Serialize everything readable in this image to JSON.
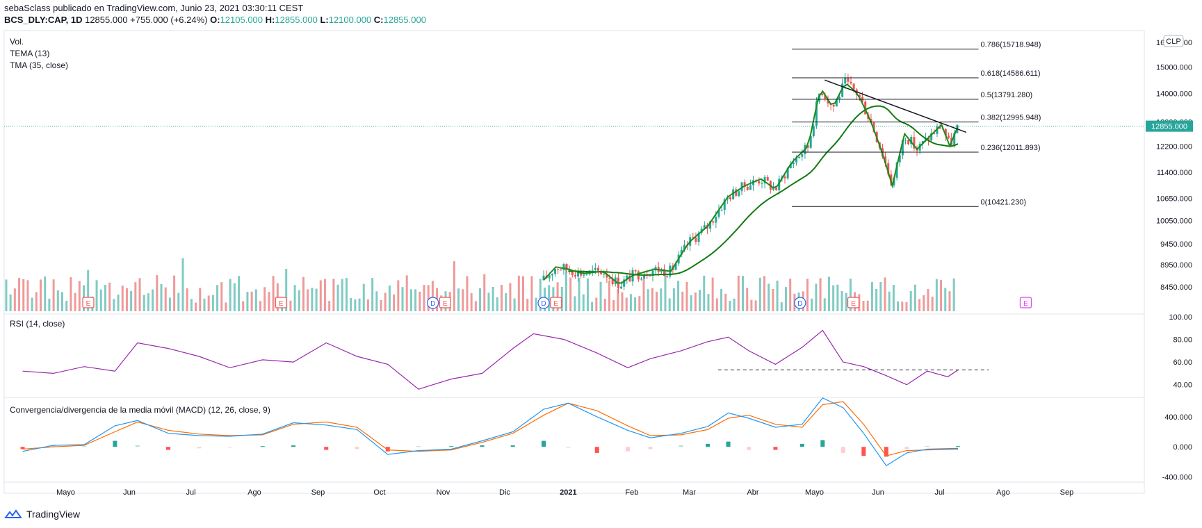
{
  "header": {
    "published_line": "sebaSclass publicado en TradingView.com, Junio 23, 2021 03:30:11 CEST",
    "symbol": "BCS_DLY:CAP, 1D",
    "last": "12855.000",
    "change": "+755.000 (+6.24%)",
    "o_label": "O:",
    "o_value": "12105.000",
    "h_label": "H:",
    "h_value": "12855.000",
    "l_label": "L:",
    "l_value": "12100.000",
    "c_label": "C:",
    "c_value": "12855.000"
  },
  "footer": {
    "brand": "TradingView"
  },
  "colors": {
    "up": "#26a69a",
    "down": "#ef5350",
    "tema": "#1b8a1b",
    "tma": "#117a11",
    "rsi": "#9c27b0",
    "macd": "#2196f3",
    "signal": "#ff6d00",
    "hist_up_strong": "#26a69a",
    "hist_up_weak": "#b2dfdb",
    "hist_down_strong": "#ff5252",
    "hist_down_weak": "#ffcdd2",
    "fib": "#131722",
    "trend": "#131722",
    "price_line": "#26a69a"
  },
  "chart_data": [
    {
      "type": "candlestick",
      "pane": "price",
      "scale": "log",
      "title": "BCS_DLY:CAP, 1D",
      "currency": "CLP",
      "indicator_labels": [
        "Vol.",
        "TEMA (13)",
        "TMA (35, close)"
      ],
      "ylim": [
        7900,
        16500
      ],
      "y_ticks": [
        "16000.000",
        "15000.000",
        "14000.000",
        "13000.000",
        "12200.000",
        "11400.000",
        "10650.000",
        "10050.000",
        "9450.000",
        "8950.000",
        "8450.000"
      ],
      "y_tick_values": [
        16000,
        15000,
        14000,
        13000,
        12200,
        11400,
        10650,
        10050,
        9450,
        8950,
        8450
      ],
      "last_price_label": "12855.000",
      "x_ticks": [
        "Mayo",
        "Jun",
        "Jul",
        "Ago",
        "Sep",
        "Oct",
        "Nov",
        "Dic",
        "2021",
        "Feb",
        "Mar",
        "Abr",
        "Mayo",
        "Jun",
        "Jul",
        "Ago",
        "Sep"
      ],
      "x_tick_dates": [
        "2020-05-01",
        "2020-06-01",
        "2020-07-01",
        "2020-08-01",
        "2020-09-01",
        "2020-10-01",
        "2020-11-01",
        "2020-12-01",
        "2021-01-01",
        "2021-02-01",
        "2021-03-01",
        "2021-04-01",
        "2021-05-01",
        "2021-06-01",
        "2021-07-01",
        "2021-08-01",
        "2021-09-01"
      ],
      "price_points": [
        [
          "2020-12-20",
          8600
        ],
        [
          "2020-12-26",
          8900
        ],
        [
          "2021-01-01",
          8850
        ],
        [
          "2021-01-08",
          8750
        ],
        [
          "2021-01-18",
          8800
        ],
        [
          "2021-01-26",
          8500
        ],
        [
          "2021-02-01",
          8700
        ],
        [
          "2021-02-12",
          8850
        ],
        [
          "2021-02-20",
          8800
        ],
        [
          "2021-03-01",
          9500
        ],
        [
          "2021-03-10",
          9900
        ],
        [
          "2021-03-20",
          10700
        ],
        [
          "2021-03-28",
          11000
        ],
        [
          "2021-04-05",
          11200
        ],
        [
          "2021-04-12",
          10900
        ],
        [
          "2021-04-20",
          11700
        ],
        [
          "2021-04-28",
          12200
        ],
        [
          "2021-05-04",
          14200
        ],
        [
          "2021-05-10",
          13500
        ],
        [
          "2021-05-16",
          14400
        ],
        [
          "2021-05-22",
          14000
        ],
        [
          "2021-05-28",
          13100
        ],
        [
          "2021-06-03",
          12000
        ],
        [
          "2021-06-08",
          11000
        ],
        [
          "2021-06-14",
          12600
        ],
        [
          "2021-06-20",
          12100
        ],
        [
          "2021-06-26",
          12500
        ],
        [
          "2021-07-02",
          12900
        ],
        [
          "2021-07-06",
          12200
        ],
        [
          "2021-07-10",
          12855
        ]
      ],
      "fibonacci": [
        {
          "level": "0.786",
          "value": "15718.948",
          "label": "0.786(15718.948)"
        },
        {
          "level": "0.618",
          "value": "14586.611",
          "label": "0.618(14586.611)"
        },
        {
          "level": "0.5",
          "value": "13791.280",
          "label": "0.5(13791.280)"
        },
        {
          "level": "0.382",
          "value": "12995.948",
          "label": "0.382(12995.948)"
        },
        {
          "level": "0.236",
          "value": "12011.893",
          "label": "0.236(12011.893)"
        },
        {
          "level": "0",
          "value": "10421.230",
          "label": "0(10421.230)"
        }
      ],
      "events": [
        {
          "type": "E",
          "date": "2020-05-12"
        },
        {
          "type": "E",
          "date": "2020-08-14"
        },
        {
          "type": "D",
          "date": "2020-10-27"
        },
        {
          "type": "E",
          "date": "2020-11-02"
        },
        {
          "type": "D",
          "date": "2020-12-20"
        },
        {
          "type": "E",
          "date": "2020-12-26"
        },
        {
          "type": "D",
          "date": "2021-04-24"
        },
        {
          "type": "E",
          "date": "2021-05-20"
        },
        {
          "type": "E",
          "date": "2021-08-12"
        }
      ]
    },
    {
      "type": "line",
      "pane": "rsi",
      "title": "RSI (14, close)",
      "ylim": [
        30,
        100
      ],
      "y_ticks": [
        "100.00",
        "80.00",
        "60.00",
        "40.00"
      ],
      "y_tick_values": [
        100,
        80,
        60,
        40
      ],
      "reference_line": 53,
      "x": [
        "2020-04-10",
        "2020-04-25",
        "2020-05-10",
        "2020-05-25",
        "2020-06-05",
        "2020-06-20",
        "2020-07-05",
        "2020-07-20",
        "2020-08-05",
        "2020-08-20",
        "2020-09-05",
        "2020-09-20",
        "2020-10-05",
        "2020-10-20",
        "2020-11-05",
        "2020-11-20",
        "2020-12-05",
        "2020-12-15",
        "2020-12-30",
        "2021-01-15",
        "2021-01-30",
        "2021-02-10",
        "2021-02-25",
        "2021-03-10",
        "2021-03-20",
        "2021-03-30",
        "2021-04-12",
        "2021-04-25",
        "2021-05-05",
        "2021-05-15",
        "2021-05-25",
        "2021-06-05",
        "2021-06-15",
        "2021-06-25",
        "2021-07-05",
        "2021-07-10"
      ],
      "values": [
        52,
        50,
        56,
        52,
        77,
        72,
        65,
        55,
        62,
        60,
        77,
        65,
        58,
        36,
        45,
        50,
        72,
        85,
        80,
        68,
        55,
        63,
        70,
        78,
        82,
        70,
        58,
        73,
        88,
        60,
        56,
        48,
        40,
        52,
        47,
        53
      ]
    },
    {
      "type": "line+histogram",
      "pane": "macd",
      "title": "Convergencia/divergencia de la media móvil (MACD) (12, 26, close, 9)",
      "ylim": [
        -450,
        620
      ],
      "y_ticks": [
        "400.000",
        "0.000",
        "-400.000"
      ],
      "y_tick_values": [
        400,
        0,
        -400
      ],
      "series": [
        {
          "name": "MACD",
          "values": [
            -60,
            20,
            30,
            280,
            350,
            180,
            150,
            140,
            170,
            320,
            290,
            230,
            -100,
            -50,
            -30,
            80,
            200,
            500,
            580,
            400,
            220,
            120,
            180,
            270,
            450,
            380,
            260,
            300,
            650,
            520,
            180,
            -250,
            -80,
            -30,
            -20
          ]
        },
        {
          "name": "Signal",
          "values": [
            -30,
            0,
            20,
            200,
            330,
            220,
            170,
            150,
            160,
            300,
            330,
            260,
            -40,
            -60,
            -40,
            60,
            180,
            420,
            580,
            480,
            280,
            150,
            160,
            230,
            380,
            420,
            300,
            260,
            560,
            600,
            300,
            -120,
            -50,
            -40,
            -30
          ]
        }
      ],
      "x": [
        "2020-04-10",
        "2020-04-25",
        "2020-05-10",
        "2020-05-25",
        "2020-06-05",
        "2020-06-20",
        "2020-07-05",
        "2020-07-20",
        "2020-08-05",
        "2020-08-20",
        "2020-09-05",
        "2020-09-20",
        "2020-10-05",
        "2020-10-20",
        "2020-11-05",
        "2020-11-20",
        "2020-12-05",
        "2020-12-20",
        "2021-01-01",
        "2021-01-15",
        "2021-01-30",
        "2021-02-10",
        "2021-02-25",
        "2021-03-10",
        "2021-03-20",
        "2021-03-30",
        "2021-04-12",
        "2021-04-25",
        "2021-05-05",
        "2021-05-15",
        "2021-05-25",
        "2021-06-05",
        "2021-06-15",
        "2021-06-25",
        "2021-07-10"
      ]
    }
  ]
}
